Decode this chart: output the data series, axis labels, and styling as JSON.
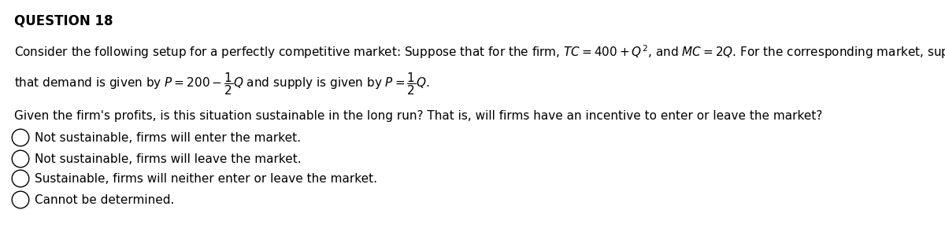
{
  "title": "QUESTION 18",
  "bg_color": "#ffffff",
  "text_color": "#000000",
  "title_fontsize": 12,
  "body_fontsize": 11,
  "math_fontsize": 11,
  "options_fontsize": 11,
  "options": [
    "Not sustainable, firms will enter the market.",
    "Not sustainable, firms will leave the market.",
    "Sustainable, firms will neither enter or leave the market.",
    "Cannot be determined."
  ],
  "line1": "Consider the following setup for a perfectly competitive market: Suppose that for the firm, $TC=400+Q^{2}$, and $MC=2Q$. For the corresponding market, suppose",
  "line2": "that demand is given by $P=200-\\dfrac{1}{2}Q$ and supply is given by $P=\\dfrac{1}{2}Q$.",
  "line3": "Given the firm's profits, is this situation sustainable in the long run? That is, will firms have an incentive to enter or leave the market?"
}
